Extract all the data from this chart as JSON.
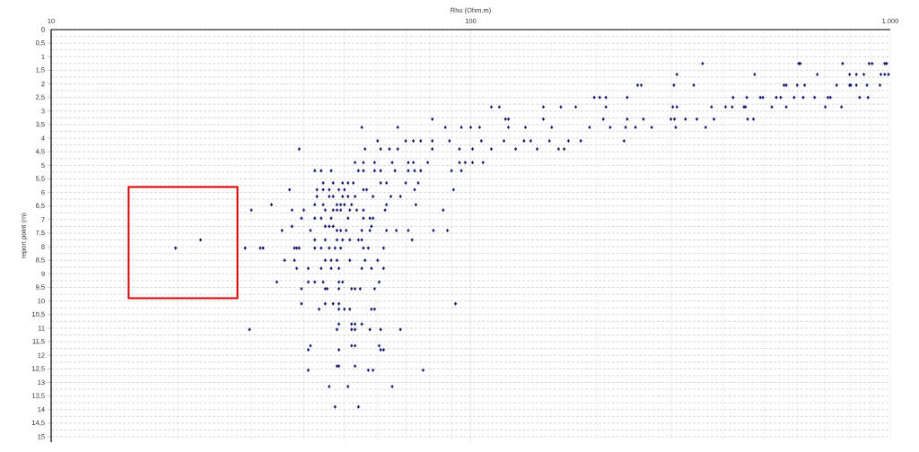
{
  "chart_data": {
    "type": "scatter",
    "xlabel": "Rho (Ohm.m)",
    "ylabel": "report point (m)",
    "color": "#10106b",
    "marker": "diamond",
    "log": "x",
    "grid": true,
    "xlim": [
      10,
      1000
    ],
    "ylim": [
      15.2,
      0
    ],
    "xticks": [
      10,
      100,
      {
        "value": 1000,
        "label": "1.000"
      }
    ],
    "yticks": [
      0,
      {
        "value": 0.5,
        "label": "0,5"
      },
      1,
      {
        "value": 1.5,
        "label": "1,5"
      },
      2,
      {
        "value": 2.5,
        "label": "2,5"
      },
      3,
      {
        "value": 3.5,
        "label": "3,5"
      },
      4,
      {
        "value": 4.5,
        "label": "4,5"
      },
      5,
      {
        "value": 5.5,
        "label": "5,5"
      },
      6,
      {
        "value": 6.5,
        "label": "6,5"
      },
      7,
      {
        "value": 7.5,
        "label": "7,5"
      },
      8,
      {
        "value": 8.5,
        "label": "8,5"
      },
      9,
      {
        "value": 9.5,
        "label": "9,5"
      },
      10,
      {
        "value": 10.5,
        "label": "10,5"
      },
      11,
      {
        "value": 11.5,
        "label": "11,5"
      },
      12,
      {
        "value": 12.5,
        "label": "12,5"
      },
      13,
      {
        "value": 13.5,
        "label": "13,5"
      },
      14,
      {
        "value": 14.5,
        "label": "14,5"
      },
      15
    ],
    "x": [
      357,
      605,
      610,
      770,
      890,
      905,
      970,
      980,
      310,
      475,
      670,
      800,
      830,
      865,
      950,
      970,
      990,
      250,
      255,
      305,
      340,
      558,
      565,
      600,
      625,
      745,
      800,
      805,
      830,
      880,
      945,
      197,
      203,
      210,
      236,
      422,
      455,
      490,
      497,
      535,
      548,
      590,
      620,
      660,
      710,
      720,
      845,
      885,
      112,
      117,
      149,
      164,
      178,
      210,
      303,
      310,
      375,
      405,
      420,
      448,
      452,
      522,
      565,
      700,
      765,
      81,
      121,
      123,
      149,
      207,
      236,
      258,
      300,
      306,
      325,
      346,
      380,
      457,
      472,
      55,
      67,
      87,
      95,
      100,
      105,
      123,
      135,
      156,
      192,
      215,
      234,
      247,
      270,
      308,
      363,
      60,
      70,
      73,
      76,
      81,
      89,
      106,
      120,
      134,
      139,
      154,
      171,
      183,
      232,
      39,
      56,
      61,
      64,
      67,
      81,
      94,
      101,
      112,
      128,
      144,
      162,
      167,
      53,
      55.5,
      59,
      65,
      71,
      73,
      79,
      94,
      97,
      101,
      107,
      42.5,
      44,
      46.5,
      54,
      55.5,
      59,
      61,
      66,
      71,
      73.5,
      76,
      90,
      95,
      44.5,
      47,
      49.5,
      51,
      52.5,
      61,
      63,
      70,
      75,
      37,
      43,
      44.5,
      46,
      48.5,
      50,
      55.5,
      56.5,
      73.5,
      91,
      43,
      46,
      47,
      49.5,
      51,
      53,
      58.5,
      64.5,
      68,
      33.5,
      42.5,
      44.5,
      48,
      49,
      50,
      52,
      63,
      74,
      30,
      37.5,
      40,
      45,
      47,
      48,
      49,
      51.5,
      53.5,
      55.5,
      62.5,
      86,
      39.5,
      42.5,
      44,
      46.5,
      51,
      55.5,
      57.5,
      58.5,
      37.5,
      45,
      46,
      47,
      58,
      35.5,
      41.5,
      48,
      49,
      50.5,
      55,
      57.5,
      63,
      66.5,
      71,
      81.5,
      88,
      22.7,
      42.5,
      45,
      48,
      49.5,
      51.5,
      54,
      55,
      72.5,
      19.8,
      29,
      31.5,
      32,
      38,
      38.5,
      39,
      42.5,
      44,
      46,
      47.5,
      49,
      55.5,
      57,
      62,
      36,
      38,
      45,
      46.5,
      48,
      51.5,
      56,
      60,
      38.5,
      41,
      44,
      46.5,
      48.5,
      55,
      58,
      62,
      34.5,
      41,
      42.5,
      44.5,
      48.5,
      49.5,
      60.5,
      39.5,
      45,
      45.5,
      48.5,
      52,
      53,
      54.5,
      59,
      39.5,
      45,
      47,
      48.5,
      92,
      43.5,
      48.5,
      50,
      51.5,
      58,
      59,
      48.5,
      52,
      53,
      55,
      29.7,
      48,
      52,
      53,
      57.5,
      61,
      68,
      41.5,
      52,
      53,
      60.5,
      41,
      48.5,
      61,
      62,
      48,
      48.5,
      53,
      41,
      57,
      58.5,
      77,
      46,
      51,
      65,
      47.5,
      54
    ],
    "values": [
      1.25,
      1.25,
      1.25,
      1.25,
      1.25,
      1.25,
      1.25,
      1.25,
      1.65,
      1.65,
      1.65,
      1.65,
      1.65,
      1.65,
      1.65,
      1.65,
      1.65,
      2.05,
      2.05,
      2.05,
      2.05,
      2.05,
      2.05,
      2.05,
      2.05,
      2.05,
      2.05,
      2.05,
      2.05,
      2.05,
      2.05,
      2.5,
      2.5,
      2.5,
      2.5,
      2.5,
      2.5,
      2.5,
      2.5,
      2.5,
      2.5,
      2.5,
      2.5,
      2.5,
      2.5,
      2.5,
      2.5,
      2.5,
      2.85,
      2.85,
      2.85,
      2.85,
      2.85,
      2.85,
      2.85,
      2.85,
      2.85,
      2.85,
      2.85,
      2.85,
      2.85,
      2.85,
      2.85,
      2.85,
      2.85,
      3.3,
      3.3,
      3.3,
      3.3,
      3.3,
      3.3,
      3.3,
      3.3,
      3.3,
      3.3,
      3.3,
      3.3,
      3.3,
      3.3,
      3.6,
      3.6,
      3.6,
      3.6,
      3.6,
      3.6,
      3.6,
      3.6,
      3.6,
      3.6,
      3.6,
      3.6,
      3.6,
      3.6,
      3.6,
      3.6,
      4.1,
      4.1,
      4.1,
      4.1,
      4.1,
      4.1,
      4.1,
      4.1,
      4.1,
      4.1,
      4.1,
      4.1,
      4.1,
      4.1,
      4.4,
      4.4,
      4.4,
      4.4,
      4.4,
      4.4,
      4.4,
      4.4,
      4.4,
      4.4,
      4.4,
      4.4,
      4.4,
      4.9,
      4.9,
      4.9,
      4.9,
      4.9,
      4.9,
      4.9,
      4.9,
      4.9,
      4.9,
      4.9,
      5.2,
      5.2,
      5.2,
      5.2,
      5.2,
      5.2,
      5.2,
      5.2,
      5.2,
      5.2,
      5.2,
      5.2,
      5.2,
      5.65,
      5.65,
      5.65,
      5.65,
      5.65,
      5.65,
      5.65,
      5.65,
      5.65,
      5.9,
      5.9,
      5.9,
      5.9,
      5.9,
      5.9,
      5.9,
      5.9,
      5.9,
      5.9,
      6.15,
      6.15,
      6.15,
      6.15,
      6.15,
      6.15,
      6.15,
      6.15,
      6.15,
      6.45,
      6.45,
      6.45,
      6.45,
      6.45,
      6.45,
      6.45,
      6.45,
      6.45,
      6.65,
      6.65,
      6.65,
      6.65,
      6.65,
      6.65,
      6.65,
      6.65,
      6.65,
      6.65,
      6.65,
      6.65,
      6.95,
      6.95,
      6.95,
      6.95,
      6.95,
      6.95,
      6.95,
      6.95,
      7.25,
      7.25,
      7.25,
      7.25,
      7.25,
      7.4,
      7.4,
      7.4,
      7.4,
      7.4,
      7.4,
      7.4,
      7.4,
      7.4,
      7.4,
      7.4,
      7.4,
      7.75,
      7.75,
      7.75,
      7.75,
      7.75,
      7.75,
      7.75,
      7.75,
      7.75,
      8.05,
      8.05,
      8.05,
      8.05,
      8.05,
      8.05,
      8.05,
      8.05,
      8.05,
      8.05,
      8.05,
      8.05,
      8.05,
      8.05,
      8.05,
      8.5,
      8.5,
      8.5,
      8.5,
      8.5,
      8.5,
      8.5,
      8.5,
      8.8,
      8.8,
      8.8,
      8.8,
      8.8,
      8.8,
      8.8,
      8.8,
      9.3,
      9.3,
      9.3,
      9.3,
      9.3,
      9.3,
      9.3,
      9.55,
      9.55,
      9.55,
      9.55,
      9.55,
      9.55,
      9.55,
      9.55,
      10.1,
      10.1,
      10.1,
      10.1,
      10.1,
      10.3,
      10.3,
      10.3,
      10.3,
      10.3,
      10.3,
      10.85,
      10.85,
      10.85,
      10.85,
      11.05,
      11.05,
      11.05,
      11.05,
      11.05,
      11.05,
      11.05,
      11.65,
      11.65,
      11.65,
      11.65,
      11.8,
      11.8,
      11.8,
      11.8,
      12.4,
      12.4,
      12.4,
      12.55,
      12.55,
      12.55,
      12.55,
      13.15,
      13.15,
      13.15,
      13.9,
      13.9
    ]
  }
}
